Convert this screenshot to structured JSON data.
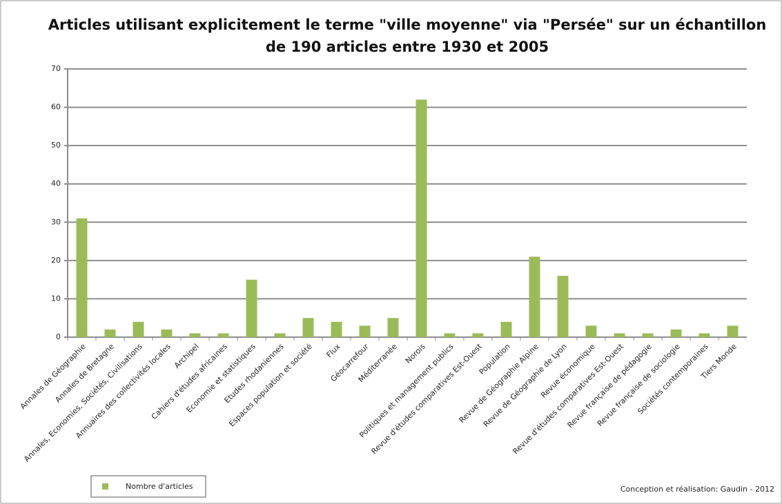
{
  "chart_data": {
    "type": "bar",
    "title": [
      "Articles utilisant explicitement le terme \"ville moyenne\" via \"Persée\" sur un échantillon",
      "de 190 articles entre 1930 et 2005"
    ],
    "categories": [
      "Annales de Géographie",
      "Annales de Bretagne",
      "Annales, Economies, Sociétés, Civilisations",
      "Annuaires des collectivités locales",
      "Archipel",
      "Cahiers d'études africaines",
      "Economie et statistiques",
      "Etudes rhodaniennes",
      "Espaces population et société",
      "Flux",
      "Géocarrefour",
      "Méditerranée",
      "Norois",
      "Politiques et management publics",
      "Revue d'études comparatives Est-Ouest",
      "Population",
      "Revue de Géographie Alpine",
      "Revue de Géographie de Lyon",
      "Revue économique",
      "Revue d'études comparatives Est-Ouest",
      "Revue française de pédagogie",
      "Revue française de sociologie",
      "Sociétés contemporaines",
      "Tiers Monde"
    ],
    "series": [
      {
        "name": "Nombre d'articles",
        "color": "#9bbb59",
        "values": [
          31,
          2,
          4,
          2,
          1,
          1,
          15,
          1,
          5,
          4,
          3,
          5,
          62,
          1,
          1,
          4,
          21,
          16,
          3,
          1,
          1,
          2,
          1,
          3
        ]
      }
    ],
    "ylim": [
      0,
      70
    ],
    "yticks": [
      0,
      10,
      20,
      30,
      40,
      50,
      60,
      70
    ],
    "grid": true,
    "legend": "bottom-left",
    "source": "Conception et réalisation: Gaudin - 2012"
  }
}
